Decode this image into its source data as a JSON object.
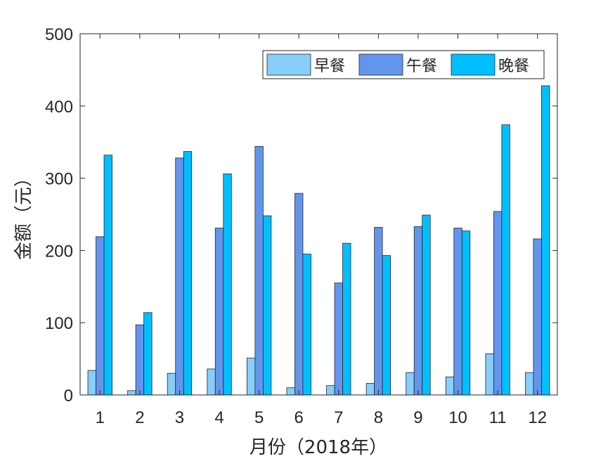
{
  "chart_data": {
    "type": "bar",
    "categories": [
      "1",
      "2",
      "3",
      "4",
      "5",
      "6",
      "7",
      "8",
      "9",
      "10",
      "11",
      "12"
    ],
    "series": [
      {
        "name": "早餐",
        "color": "#87CEFA",
        "values": [
          34,
          6,
          30,
          36,
          51,
          10,
          13,
          16,
          31,
          25,
          57,
          31
        ]
      },
      {
        "name": "午餐",
        "color": "#6495ED",
        "values": [
          219,
          97,
          328,
          231,
          344,
          279,
          155,
          232,
          233,
          231,
          254,
          216
        ]
      },
      {
        "name": "晚餐",
        "color": "#00BFFF",
        "values": [
          332,
          114,
          337,
          306,
          248,
          195,
          210,
          193,
          249,
          227,
          374,
          428
        ]
      }
    ],
    "xlabel": "月份（2018年）",
    "ylabel": "金额（元）",
    "ylim": [
      0,
      500
    ],
    "yticks": [
      0,
      100,
      200,
      300,
      400,
      500
    ],
    "legend_position": "top-right",
    "legend_orientation": "horizontal",
    "grid": false
  }
}
